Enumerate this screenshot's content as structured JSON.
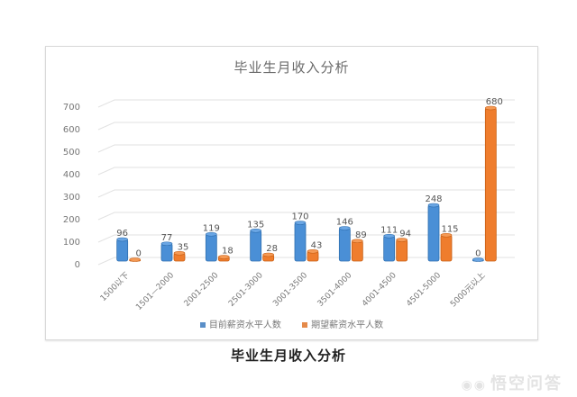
{
  "chart_data": {
    "type": "bar",
    "title": "毕业生月收入分析",
    "xlabel": "",
    "ylabel": "",
    "ylim": [
      0,
      700
    ],
    "yticks": [
      0,
      100,
      200,
      300,
      400,
      500,
      600,
      700
    ],
    "grid": true,
    "legend_position": "bottom",
    "style": "3d-cylinder",
    "categories": [
      "1500以下",
      "1501—2000",
      "2001-2500",
      "2501-3000",
      "3001-3500",
      "3501-4000",
      "4001-4500",
      "4501-5000",
      "5000元以上"
    ],
    "series": [
      {
        "name": "目前薪资水平人数",
        "color": "#4a8fd6",
        "values": [
          96,
          77,
          119,
          135,
          170,
          146,
          111,
          248,
          0
        ]
      },
      {
        "name": "期望薪资水平人数",
        "color": "#ef7d2d",
        "values": [
          0,
          35,
          18,
          28,
          43,
          89,
          94,
          115,
          680
        ]
      }
    ],
    "caption": "毕业生月收入分析"
  },
  "legend": {
    "items": [
      {
        "label": "目前薪资水平人数",
        "color": "#4a8fd6"
      },
      {
        "label": "期望薪资水平人数",
        "color": "#ef7d2d"
      }
    ]
  },
  "watermark": {
    "text": "悟空问答",
    "icon": "wukong-logo-icon"
  }
}
